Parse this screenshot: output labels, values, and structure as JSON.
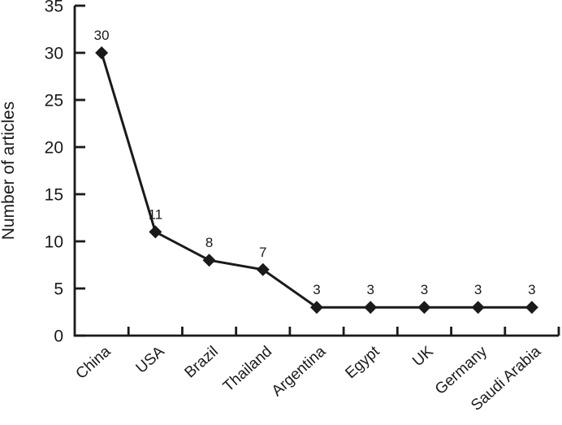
{
  "chart_data": {
    "type": "line",
    "categories": [
      "China",
      "USA",
      "Brazil",
      "Thailand",
      "Argentina",
      "Egypt",
      "UK",
      "Germany",
      "Saudi Arabia"
    ],
    "values": [
      30,
      11,
      8,
      7,
      3,
      3,
      3,
      3,
      3
    ],
    "point_labels": [
      "30",
      "11",
      "8",
      "7",
      "3",
      "3",
      "3",
      "3",
      "3"
    ],
    "title": "",
    "xlabel": "",
    "ylabel": "Number of articles",
    "ylim": [
      0,
      35
    ],
    "yticks": [
      0,
      5,
      10,
      15,
      20,
      25,
      30,
      35
    ],
    "grid": false,
    "legend": false,
    "marker": "diamond",
    "line_color": "#1a1a1a",
    "marker_color": "#1a1a1a",
    "text_color": "#1a1a1a",
    "background": "#ffffff"
  }
}
